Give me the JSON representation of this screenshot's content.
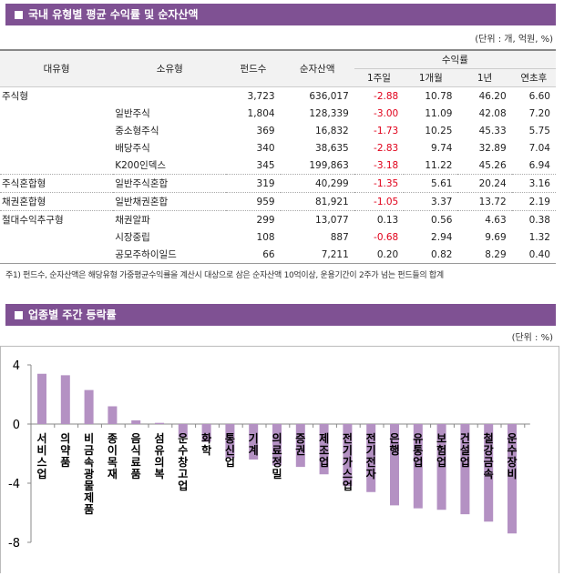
{
  "section1": {
    "title": "국내 유형별 평균 수익률 및 순자산액",
    "unit": "(단위 : 개, 억원, %)"
  },
  "table": {
    "headers": {
      "type": "대유형",
      "subtype": "소유형",
      "funds": "펀드수",
      "assets": "순자산액",
      "returns": "수익률",
      "w1": "1주일",
      "m1": "1개월",
      "y1": "1년",
      "ytd": "연초후"
    },
    "rows": [
      [
        "주식형",
        "",
        "3,723",
        "636,017",
        "-2.88",
        "10.78",
        "46.20",
        "6.60"
      ],
      [
        "",
        "일반주식",
        "1,804",
        "128,339",
        "-3.00",
        "11.09",
        "42.08",
        "7.20"
      ],
      [
        "",
        "중소형주식",
        "369",
        "16,832",
        "-1.73",
        "10.25",
        "45.33",
        "5.75"
      ],
      [
        "",
        "배당주식",
        "340",
        "38,635",
        "-2.83",
        "9.74",
        "32.89",
        "7.04"
      ],
      [
        "",
        "K200인덱스",
        "345",
        "199,863",
        "-3.18",
        "11.22",
        "45.26",
        "6.94"
      ],
      [
        "주식혼합형",
        "일반주식혼합",
        "319",
        "40,299",
        "-1.35",
        "5.61",
        "20.24",
        "3.16"
      ],
      [
        "채권혼합형",
        "일반채권혼합",
        "959",
        "81,921",
        "-1.05",
        "3.37",
        "13.72",
        "2.19"
      ],
      [
        "절대수익추구형",
        "채권알파",
        "299",
        "13,077",
        "0.13",
        "0.56",
        "4.63",
        "0.38"
      ],
      [
        "",
        "시장중립",
        "108",
        "887",
        "-0.68",
        "2.94",
        "9.69",
        "1.32"
      ],
      [
        "",
        "공모주하이일드",
        "66",
        "7,211",
        "0.20",
        "0.82",
        "8.29",
        "0.40"
      ]
    ],
    "note": "주1) 펀드수, 순자산액은 해당유형 가중평균수익률을 계산시 대상으로 삼은 순자산액 10억이상, 운용기간이 2주가 넘는 펀드들의 합계"
  },
  "section2": {
    "title": "업종별 주간 등락률",
    "unit": "(단위 : %)"
  },
  "chart_data": {
    "type": "bar",
    "categories": [
      "서비스업",
      "의약품",
      "비금속광물제품",
      "종이목재",
      "음식료품",
      "섬유의복",
      "운수창고업",
      "화학",
      "통신업",
      "기계",
      "의료정밀",
      "증권",
      "제조업",
      "전기가스업",
      "전기전자",
      "은행",
      "유통업",
      "보험업",
      "건설업",
      "철강금속",
      "운수장비"
    ],
    "values": [
      3.4,
      3.3,
      2.3,
      1.2,
      0.25,
      0.08,
      -0.9,
      -1.2,
      -2.3,
      -2.4,
      -2.8,
      -2.9,
      -3.4,
      -4.2,
      -4.6,
      -5.5,
      -5.7,
      -5.8,
      -6.1,
      -6.6,
      -7.4
    ],
    "ylim": [
      -8,
      4
    ],
    "yticks": [
      "4",
      "0",
      "-4",
      "-8"
    ],
    "bar_color": "#b491c3",
    "grid": false
  }
}
